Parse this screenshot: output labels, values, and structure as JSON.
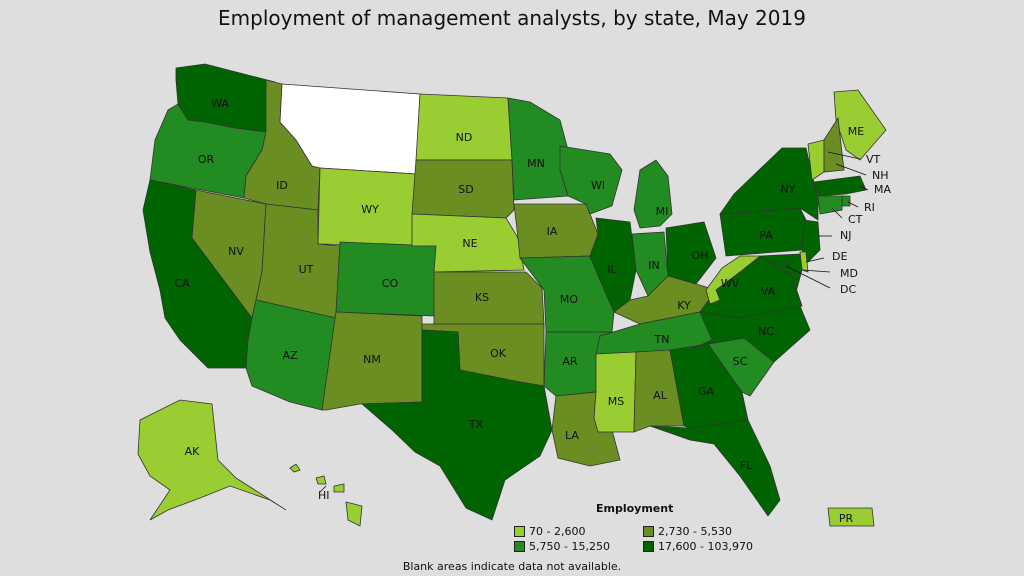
{
  "title": "Employment of management analysts, by state, May 2019",
  "legend": {
    "title": "Employment",
    "bins": [
      {
        "label": "70 - 2,600",
        "color": "#9acd32"
      },
      {
        "label": "2,730 - 5,530",
        "color": "#6b8e23"
      },
      {
        "label": "5,750 - 15,250",
        "color": "#228b22"
      },
      {
        "label": "17,600 - 103,970",
        "color": "#006400"
      }
    ]
  },
  "no_data_color": "#ffffff",
  "footnote": "Blank areas indicate data not available.",
  "states": {
    "WA": {
      "label": "WA",
      "bin": 3
    },
    "OR": {
      "label": "OR",
      "bin": 2
    },
    "CA": {
      "label": "CA",
      "bin": 3
    },
    "NV": {
      "label": "NV",
      "bin": 1
    },
    "ID": {
      "label": "ID",
      "bin": 1
    },
    "MT": {
      "label": "",
      "bin": -1
    },
    "WY": {
      "label": "WY",
      "bin": 0
    },
    "UT": {
      "label": "UT",
      "bin": 1
    },
    "AZ": {
      "label": "AZ",
      "bin": 2
    },
    "CO": {
      "label": "CO",
      "bin": 2
    },
    "NM": {
      "label": "NM",
      "bin": 1
    },
    "ND": {
      "label": "ND",
      "bin": 0
    },
    "SD": {
      "label": "SD",
      "bin": 1
    },
    "NE": {
      "label": "NE",
      "bin": 0
    },
    "KS": {
      "label": "KS",
      "bin": 1
    },
    "OK": {
      "label": "OK",
      "bin": 1
    },
    "TX": {
      "label": "TX",
      "bin": 3
    },
    "MN": {
      "label": "MN",
      "bin": 2
    },
    "IA": {
      "label": "IA",
      "bin": 1
    },
    "MO": {
      "label": "MO",
      "bin": 2
    },
    "AR": {
      "label": "AR",
      "bin": 2
    },
    "LA": {
      "label": "LA",
      "bin": 1
    },
    "WI": {
      "label": "WI",
      "bin": 2
    },
    "IL": {
      "label": "IL",
      "bin": 3
    },
    "MI": {
      "label": "MI",
      "bin": 2
    },
    "IN": {
      "label": "IN",
      "bin": 2
    },
    "OH": {
      "label": "OH",
      "bin": 3
    },
    "KY": {
      "label": "KY",
      "bin": 1
    },
    "TN": {
      "label": "TN",
      "bin": 2
    },
    "MS": {
      "label": "MS",
      "bin": 0
    },
    "AL": {
      "label": "AL",
      "bin": 1
    },
    "GA": {
      "label": "GA",
      "bin": 3
    },
    "FL": {
      "label": "FL",
      "bin": 3
    },
    "SC": {
      "label": "SC",
      "bin": 2
    },
    "NC": {
      "label": "NC",
      "bin": 3
    },
    "VA": {
      "label": "VA",
      "bin": 3
    },
    "WV": {
      "label": "WV",
      "bin": 0
    },
    "PA": {
      "label": "PA",
      "bin": 3
    },
    "NY": {
      "label": "NY",
      "bin": 3
    },
    "ME": {
      "label": "ME",
      "bin": 0
    },
    "VT": {
      "label": "VT",
      "bin": 0
    },
    "NH": {
      "label": "NH",
      "bin": 1
    },
    "MA": {
      "label": "MA",
      "bin": 3
    },
    "RI": {
      "label": "RI",
      "bin": 2
    },
    "CT": {
      "label": "CT",
      "bin": 2
    },
    "NJ": {
      "label": "NJ",
      "bin": 3
    },
    "DE": {
      "label": "DE",
      "bin": 0
    },
    "MD": {
      "label": "MD",
      "bin": 3
    },
    "DC": {
      "label": "DC",
      "bin": 3
    },
    "AK": {
      "label": "AK",
      "bin": 0
    },
    "HI": {
      "label": "HI",
      "bin": 0
    },
    "PR": {
      "label": "PR",
      "bin": 0
    }
  }
}
